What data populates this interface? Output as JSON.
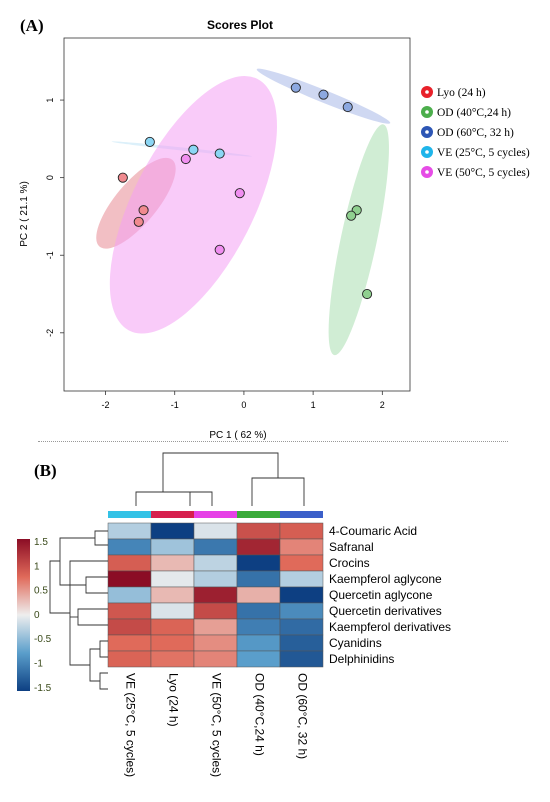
{
  "panel_a": {
    "label": "(A)",
    "chart_data": {
      "type": "scatter",
      "title": "Scores Plot",
      "xlabel": "PC 1 ( 62 %)",
      "ylabel": "PC 2 ( 21.1 %)",
      "xlim": [
        -2.6,
        2.4
      ],
      "ylim": [
        -2.75,
        1.8
      ],
      "xticks": [
        -2,
        -1,
        0,
        1,
        2
      ],
      "yticks": [
        -2,
        -1,
        0,
        1
      ],
      "legend_position": "right",
      "series": [
        {
          "name": "Lyo (24 h)",
          "color": "#e8212a",
          "fill": "#f08a8f",
          "points": [
            [
              -1.75,
              0.0
            ],
            [
              -1.45,
              -0.42
            ],
            [
              -1.52,
              -0.57
            ]
          ],
          "ellipse": {
            "cx": -1.56,
            "cy": -0.33,
            "rx": 0.3,
            "ry": 0.73,
            "angle": 40,
            "fill": "#e88a94"
          }
        },
        {
          "name": "OD (40°C,24 h)",
          "color": "#4cae4c",
          "fill": "#8fd08f",
          "points": [
            [
              1.63,
              -0.42
            ],
            [
              1.55,
              -0.49
            ],
            [
              1.78,
              -1.5
            ]
          ],
          "ellipse": {
            "cx": 1.66,
            "cy": -0.8,
            "rx": 0.26,
            "ry": 1.52,
            "angle": 12,
            "fill": "#a9dfb0"
          }
        },
        {
          "name": "OD (60°C, 32 h)",
          "color": "#2d56b5",
          "fill": "#8ca8e0",
          "points": [
            [
              0.75,
              1.16
            ],
            [
              1.15,
              1.07
            ],
            [
              1.5,
              0.91
            ]
          ],
          "ellipse": {
            "cx": 1.15,
            "cy": 1.05,
            "rx": 1.04,
            "ry": 0.08,
            "angle": 22,
            "fill": "#a7b8e8"
          }
        },
        {
          "name": "VE (25°C, 5 cycles)",
          "color": "#1fb5ea",
          "fill": "#8bd6f4",
          "points": [
            [
              -1.36,
              0.46
            ],
            [
              -0.73,
              0.36
            ],
            [
              -0.35,
              0.31
            ]
          ],
          "ellipse": {
            "cx": -0.9,
            "cy": 0.37,
            "rx": 1.02,
            "ry": 0.02,
            "angle": 6,
            "fill": "#bfe4f6"
          }
        },
        {
          "name": "VE (50°C, 5 cycles)",
          "color": "#e64ce6",
          "fill": "#f08ef0",
          "points": [
            [
              -0.84,
              0.24
            ],
            [
              -0.06,
              -0.2
            ],
            [
              -0.35,
              -0.93
            ]
          ],
          "ellipse": {
            "cx": -0.73,
            "cy": -0.35,
            "rx": 0.87,
            "ry": 1.82,
            "angle": 27,
            "fill": "#f4a0f4"
          }
        }
      ]
    }
  },
  "panel_b": {
    "label": "(B)",
    "chart_data": {
      "type": "heatmap",
      "columns": [
        "VE (25°C, 5 cycles)",
        "Lyo (24 h)",
        "VE (50°C, 5 cycles)",
        "OD (40°C,24 h)",
        "OD (60°C, 32 h)"
      ],
      "column_colors": [
        "#33c2e6",
        "#d61f4e",
        "#e640e6",
        "#3aab3a",
        "#3b5fc9"
      ],
      "rows": [
        "4-Coumaric Acid",
        "Safranal",
        "Crocins",
        "Kaempferol aglycone",
        "Quercetin aglycone",
        "Quercetin derivatives",
        "Kaempferol derivatives",
        "Cyanidins",
        "Delphinidins"
      ],
      "values": [
        [
          -0.3,
          -1.5,
          -0.1,
          0.95,
          0.85
        ],
        [
          -0.95,
          -0.4,
          -1.05,
          1.3,
          0.6
        ],
        [
          0.85,
          0.3,
          -0.25,
          -1.5,
          0.75
        ],
        [
          1.6,
          -0.05,
          -0.3,
          -1.1,
          -0.3
        ],
        [
          -0.45,
          0.3,
          1.35,
          0.35,
          -1.5
        ],
        [
          0.9,
          -0.1,
          1.0,
          -1.1,
          -0.9
        ],
        [
          1.0,
          0.8,
          0.45,
          -1.0,
          -1.15
        ],
        [
          0.75,
          0.75,
          0.55,
          -0.8,
          -1.25
        ],
        [
          0.8,
          0.7,
          0.6,
          -0.75,
          -1.3
        ]
      ],
      "legend_ticks": [
        "1.5",
        "1",
        "0.5",
        "0",
        "-0.5",
        "-1",
        "-1.5"
      ],
      "scale": [
        -1.5,
        1.5
      ]
    }
  }
}
